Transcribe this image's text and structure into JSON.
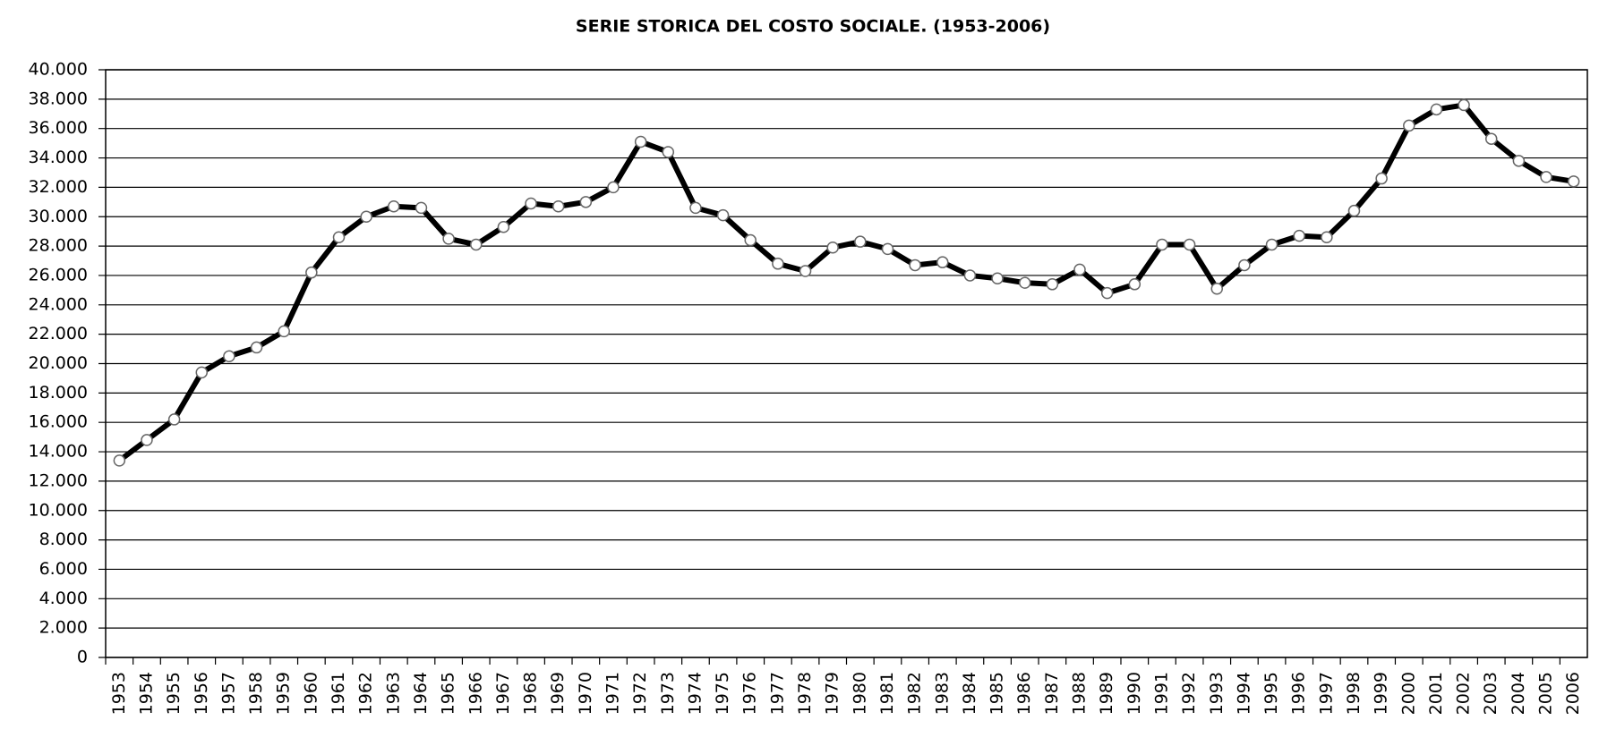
{
  "chart_data": {
    "type": "line",
    "title": "SERIE STORICA DEL COSTO SOCIALE. (1953-2006)",
    "categories": [
      "1953",
      "1954",
      "1955",
      "1956",
      "1957",
      "1958",
      "1959",
      "1960",
      "1961",
      "1962",
      "1963",
      "1964",
      "1965",
      "1966",
      "1967",
      "1968",
      "1969",
      "1970",
      "1971",
      "1972",
      "1973",
      "1974",
      "1975",
      "1976",
      "1977",
      "1978",
      "1979",
      "1980",
      "1981",
      "1982",
      "1983",
      "1984",
      "1985",
      "1986",
      "1987",
      "1988",
      "1989",
      "1990",
      "1991",
      "1992",
      "1993",
      "1994",
      "1995",
      "1996",
      "1997",
      "1998",
      "1999",
      "2000",
      "2001",
      "2002",
      "2003",
      "2004",
      "2005",
      "2006"
    ],
    "values": [
      13400,
      14800,
      16200,
      19400,
      20500,
      21100,
      22200,
      26200,
      28600,
      30000,
      30700,
      30600,
      28500,
      28100,
      29300,
      30900,
      30700,
      31000,
      32000,
      35100,
      34400,
      30600,
      30100,
      28400,
      26800,
      26300,
      27900,
      28300,
      27800,
      26700,
      26900,
      26000,
      25800,
      25500,
      25400,
      26400,
      24800,
      25400,
      28100,
      28100,
      25100,
      26700,
      28100,
      28700,
      28600,
      30400,
      32600,
      36200,
      37300,
      37600,
      35300,
      33800,
      32700,
      32400
    ],
    "color": "#000000",
    "ylim": [
      0,
      40000
    ],
    "yticks": [
      0,
      {
        "value": 2000,
        "label": "2.000"
      },
      {
        "value": 4000,
        "label": "4.000"
      },
      {
        "value": 6000,
        "label": "6.000"
      },
      {
        "value": 8000,
        "label": "8.000"
      },
      {
        "value": 10000,
        "label": "10.000"
      },
      {
        "value": 12000,
        "label": "12.000"
      },
      {
        "value": 14000,
        "label": "14.000"
      },
      {
        "value": 16000,
        "label": "16.000"
      },
      {
        "value": 18000,
        "label": "18.000"
      },
      {
        "value": 20000,
        "label": "20.000"
      },
      {
        "value": 22000,
        "label": "22.000"
      },
      {
        "value": 24000,
        "label": "24.000"
      },
      {
        "value": 26000,
        "label": "26.000"
      },
      {
        "value": 28000,
        "label": "28.000"
      },
      {
        "value": 30000,
        "label": "30.000"
      },
      {
        "value": 32000,
        "label": "32.000"
      },
      {
        "value": 34000,
        "label": "34.000"
      },
      {
        "value": 36000,
        "label": "36.000"
      },
      {
        "value": 38000,
        "label": "38.000"
      },
      {
        "value": 40000,
        "label": "40.000"
      }
    ],
    "grid": true
  }
}
